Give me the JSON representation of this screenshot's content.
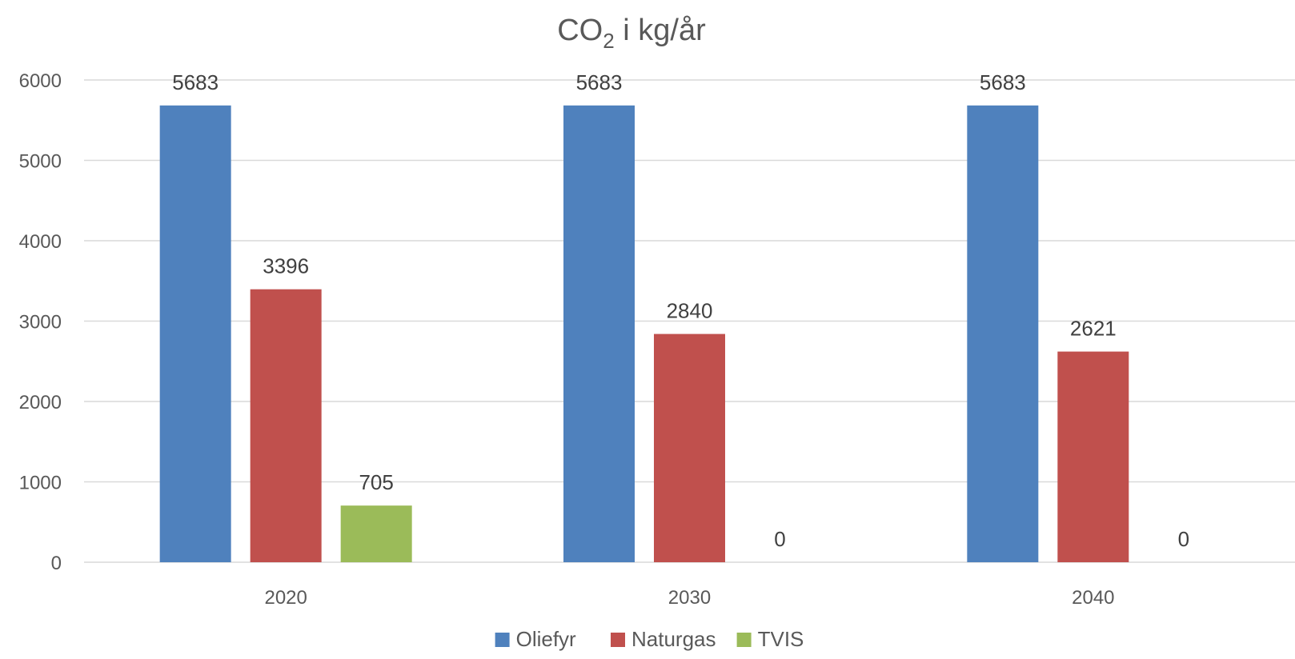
{
  "chart_data": {
    "type": "bar",
    "title": "CO",
    "title_subscript": "2",
    "title_suffix": " i kg/år",
    "xlabel": "",
    "ylabel": "",
    "categories": [
      "2020",
      "2030",
      "2040"
    ],
    "series": [
      {
        "name": "Oliefyr",
        "color": "#4F81BD",
        "values": [
          5683,
          5683,
          5683
        ]
      },
      {
        "name": "Naturgas",
        "color": "#C0504D",
        "values": [
          3396,
          2840,
          2621
        ]
      },
      {
        "name": "TVIS",
        "color": "#9BBB59",
        "values": [
          705,
          0,
          0
        ]
      }
    ],
    "ylim": [
      0,
      6000
    ],
    "yticks": [
      "0",
      "1000",
      "2000",
      "3000",
      "4000",
      "5000",
      "6000"
    ],
    "grid": true,
    "legend": "bottom",
    "data_labels": true
  }
}
